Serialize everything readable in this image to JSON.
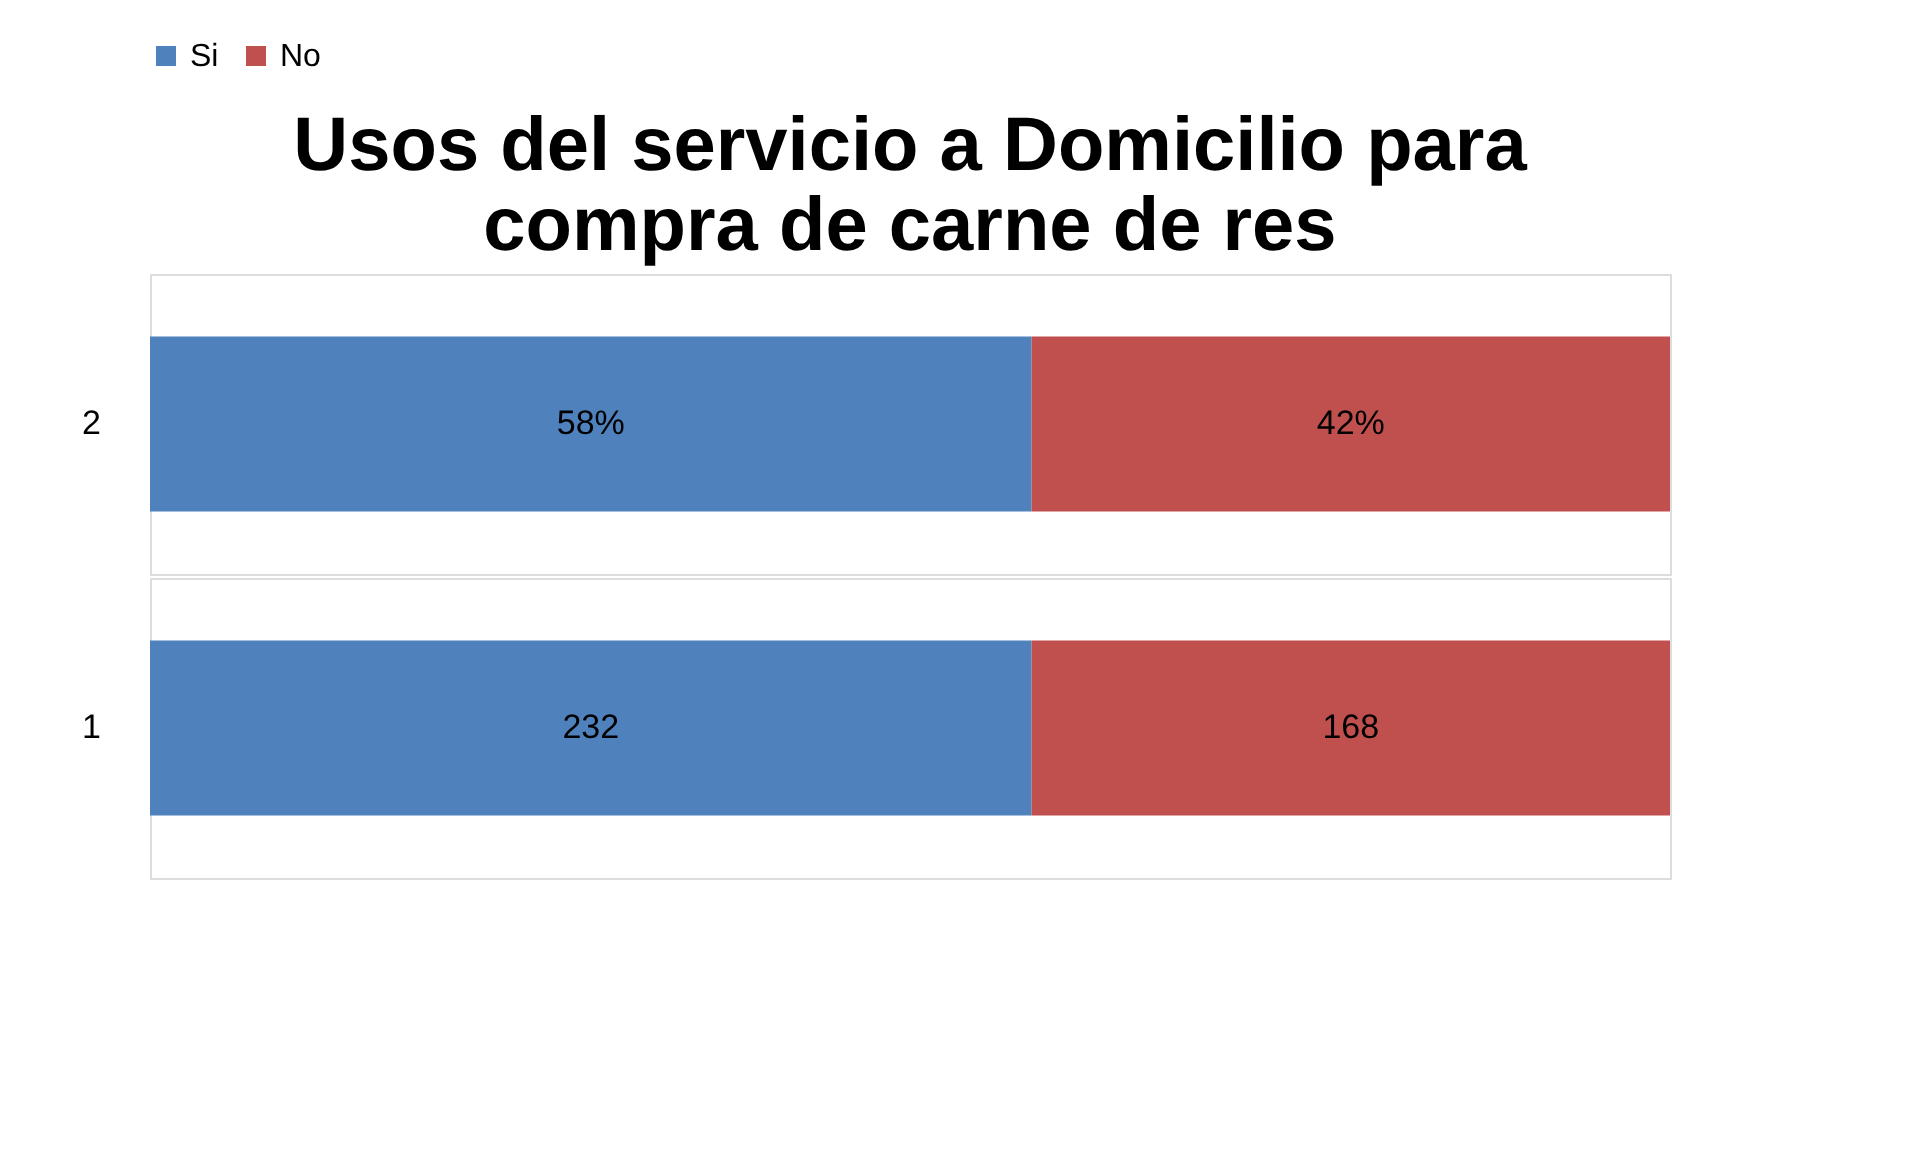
{
  "chart_data": [
    {
      "type": "bar",
      "title": "Usos del servicio a Domicilio para compra de carne de res",
      "orientation": "horizontal",
      "stacked": true,
      "categories": [
        "2"
      ],
      "xlim": [
        0,
        100
      ],
      "tick_labels": "y",
      "legend": "top",
      "series": [
        {
          "name": "Si",
          "color": "#4f81bd",
          "values": [
            58
          ],
          "value_labels": [
            "58%"
          ]
        },
        {
          "name": "No",
          "color": "#c0504d",
          "values": [
            42
          ],
          "value_labels": [
            "42%"
          ]
        }
      ]
    },
    {
      "type": "bar",
      "orientation": "horizontal",
      "stacked": true,
      "categories": [
        "1"
      ],
      "xlim": [
        0,
        400
      ],
      "tick_labels": "y",
      "series": [
        {
          "name": "Si",
          "color": "#4f81bd",
          "values": [
            232
          ],
          "value_labels": [
            "232"
          ]
        },
        {
          "name": "No",
          "color": "#c0504d",
          "values": [
            168
          ],
          "value_labels": [
            "168"
          ]
        }
      ]
    }
  ]
}
